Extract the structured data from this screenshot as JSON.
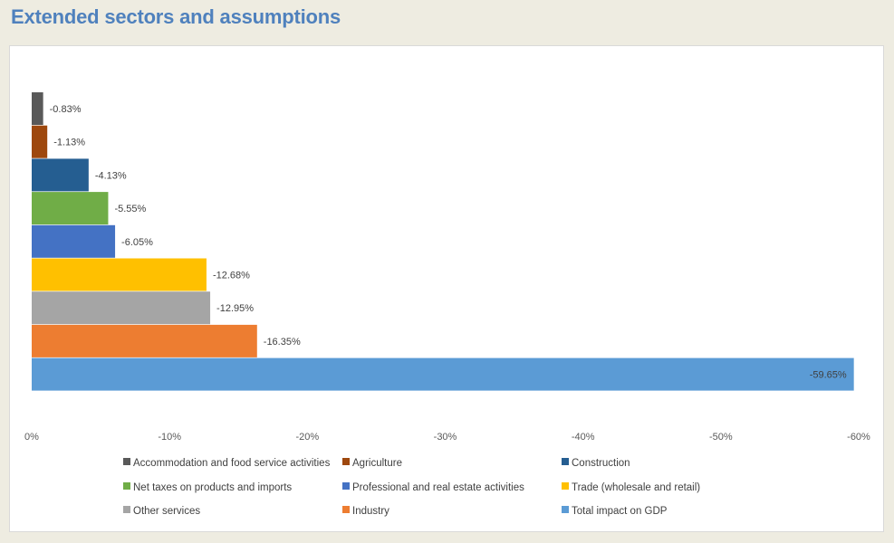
{
  "page_title": "Extended sectors and assumptions",
  "chart_data": {
    "type": "bar",
    "orientation": "horizontal",
    "title": "",
    "xlabel": "",
    "ylabel": "",
    "xlim": [
      0,
      -60
    ],
    "grid": false,
    "legend_position": "bottom",
    "x_ticks": [
      "0%",
      "-10%",
      "-20%",
      "-30%",
      "-40%",
      "-50%",
      "-60%"
    ],
    "x_tick_values": [
      0,
      -10,
      -20,
      -30,
      -40,
      -50,
      -60
    ],
    "series": [
      {
        "name": "Accommodation and food service activities",
        "value": -0.83,
        "label": "-0.83%",
        "color": "#595959"
      },
      {
        "name": "Agriculture",
        "value": -1.13,
        "label": "-1.13%",
        "color": "#9e480e"
      },
      {
        "name": "Construction",
        "value": -4.13,
        "label": "-4.13%",
        "color": "#255e91"
      },
      {
        "name": "Net taxes on products and imports",
        "value": -5.55,
        "label": "-5.55%",
        "color": "#70ad47"
      },
      {
        "name": "Professional and real estate activities",
        "value": -6.05,
        "label": "-6.05%",
        "color": "#4472c4"
      },
      {
        "name": "Trade (wholesale and retail)",
        "value": -12.68,
        "label": "-12.68%",
        "color": "#ffc000"
      },
      {
        "name": "Other services",
        "value": -12.95,
        "label": "-12.95%",
        "color": "#a5a5a5"
      },
      {
        "name": "Industry",
        "value": -16.35,
        "label": "-16.35%",
        "color": "#ed7d31"
      },
      {
        "name": "Total impact on GDP",
        "value": -59.65,
        "label": "-59.65%",
        "color": "#5b9bd5"
      }
    ]
  }
}
